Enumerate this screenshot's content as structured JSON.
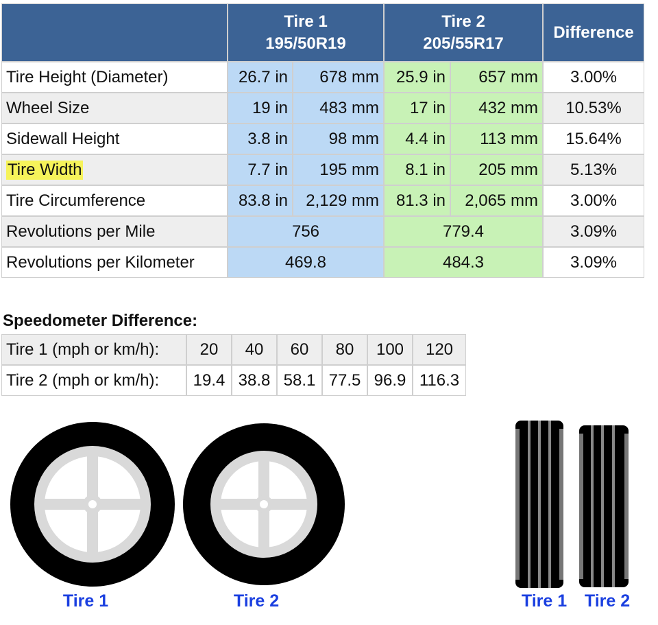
{
  "table": {
    "columns": [
      {
        "name": "Tire 1",
        "size": "195/50R19"
      },
      {
        "name": "Tire 2",
        "size": "205/55R17"
      }
    ],
    "difference_header": "Difference",
    "rows": [
      [
        "Tire Height (Diameter)",
        "26.7 in",
        "678 mm",
        "25.9 in",
        "657 mm",
        "3.00%"
      ],
      [
        "Wheel Size",
        "19 in",
        "483 mm",
        "17 in",
        "432 mm",
        "10.53%"
      ],
      [
        "Sidewall Height",
        "3.8 in",
        "98 mm",
        "4.4 in",
        "113 mm",
        "15.64%"
      ],
      [
        "Tire Width",
        "7.7 in",
        "195 mm",
        "8.1 in",
        "205 mm",
        "5.13%"
      ],
      [
        "Tire Circumference",
        "83.8 in",
        "2,129 mm",
        "81.3 in",
        "2,065 mm",
        "3.00%"
      ],
      [
        "Revolutions per Mile",
        "756",
        "779.4",
        "3.09%"
      ],
      [
        "Revolutions per Kilometer",
        "469.8",
        "484.3",
        "3.09%"
      ]
    ]
  },
  "speedometer": {
    "title": "Speedometer Difference:",
    "rows": [
      [
        "Tire 1 (mph or km/h):",
        "20",
        "40",
        "60",
        "80",
        "100",
        "120"
      ],
      [
        "Tire 2 (mph or km/h):",
        "19.4",
        "38.8",
        "58.1",
        "77.5",
        "96.9",
        "116.3"
      ]
    ]
  },
  "diagrams": {
    "front_labels": [
      "Tire 1",
      "Tire 2"
    ],
    "side_labels": [
      "Tire 1",
      "Tire 2"
    ]
  }
}
